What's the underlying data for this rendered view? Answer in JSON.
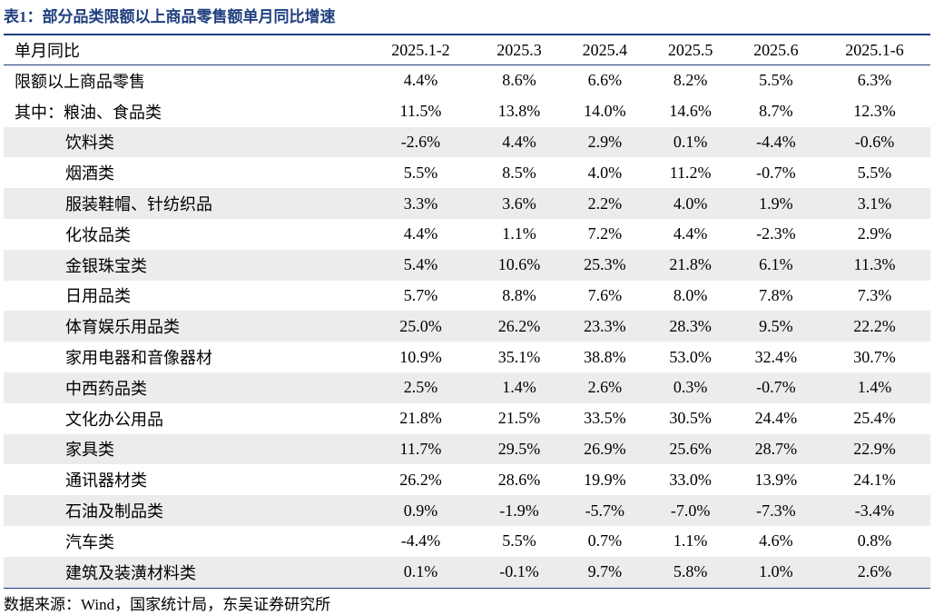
{
  "title": "表1：部分品类限额以上商品零售额单月同比增速",
  "header": [
    "单月同比",
    "2025.1-2",
    "2025.3",
    "2025.4",
    "2025.5",
    "2025.6",
    "2025.1-6"
  ],
  "rows": [
    [
      "限额以上商品零售",
      "4.4%",
      "8.6%",
      "6.6%",
      "8.2%",
      "5.5%",
      "6.3%"
    ],
    [
      "其中：粮油、食品类",
      "11.5%",
      "13.8%",
      "14.0%",
      "14.6%",
      "8.7%",
      "12.3%"
    ],
    [
      "饮料类",
      "-2.6%",
      "4.4%",
      "2.9%",
      "0.1%",
      "-4.4%",
      "-0.6%"
    ],
    [
      "烟酒类",
      "5.5%",
      "8.5%",
      "4.0%",
      "11.2%",
      "-0.7%",
      "5.5%"
    ],
    [
      "服装鞋帽、针纺织品",
      "3.3%",
      "3.6%",
      "2.2%",
      "4.0%",
      "1.9%",
      "3.1%"
    ],
    [
      "化妆品类",
      "4.4%",
      "1.1%",
      "7.2%",
      "4.4%",
      "-2.3%",
      "2.9%"
    ],
    [
      "金银珠宝类",
      "5.4%",
      "10.6%",
      "25.3%",
      "21.8%",
      "6.1%",
      "11.3%"
    ],
    [
      "日用品类",
      "5.7%",
      "8.8%",
      "7.6%",
      "8.0%",
      "7.8%",
      "7.3%"
    ],
    [
      "体育娱乐用品类",
      "25.0%",
      "26.2%",
      "23.3%",
      "28.3%",
      "9.5%",
      "22.2%"
    ],
    [
      "家用电器和音像器材",
      "10.9%",
      "35.1%",
      "38.8%",
      "53.0%",
      "32.4%",
      "30.7%"
    ],
    [
      "中西药品类",
      "2.5%",
      "1.4%",
      "2.6%",
      "0.3%",
      "-0.7%",
      "1.4%"
    ],
    [
      "文化办公用品",
      "21.8%",
      "21.5%",
      "33.5%",
      "30.5%",
      "24.4%",
      "25.4%"
    ],
    [
      "家具类",
      "11.7%",
      "29.5%",
      "26.9%",
      "25.6%",
      "28.7%",
      "22.9%"
    ],
    [
      "通讯器材类",
      "26.2%",
      "28.6%",
      "19.9%",
      "33.0%",
      "13.9%",
      "24.1%"
    ],
    [
      "石油及制品类",
      "0.9%",
      "-1.9%",
      "-5.7%",
      "-7.0%",
      "-7.3%",
      "-3.4%"
    ],
    [
      "汽车类",
      "-4.4%",
      "5.5%",
      "0.7%",
      "1.1%",
      "4.6%",
      "0.8%"
    ],
    [
      "建筑及装潢材料类",
      "0.1%",
      "-0.1%",
      "9.7%",
      "5.8%",
      "1.0%",
      "2.6%"
    ]
  ],
  "source": "数据来源：Wind，国家统计局，东吴证券研究所"
}
